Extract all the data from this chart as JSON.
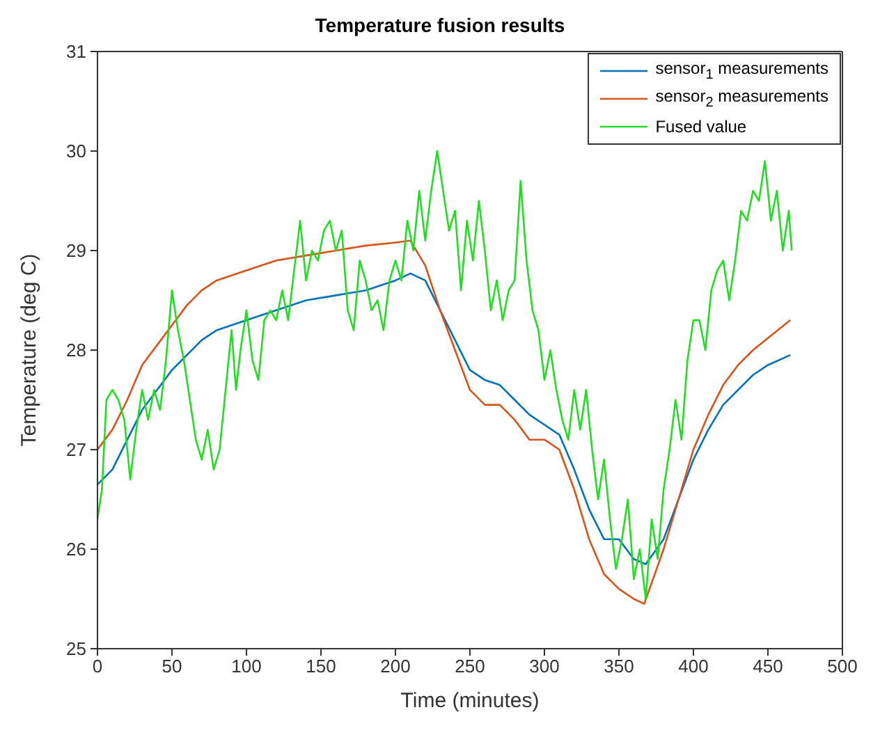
{
  "chart_data": {
    "type": "line",
    "title": "Temperature fusion results",
    "xlabel": "Time (minutes)",
    "ylabel": "Temperature (deg C)",
    "xlim": [
      0,
      500
    ],
    "xticks": [
      0,
      50,
      100,
      150,
      200,
      250,
      300,
      350,
      400,
      450,
      500
    ],
    "ylim": [
      25,
      31
    ],
    "yticks": [
      25,
      26,
      27,
      28,
      29,
      30,
      31
    ],
    "grid": false,
    "legend": "top right",
    "line_style": "solid",
    "marker": "none",
    "series": [
      {
        "name": "sensor$_{1}$ measurements",
        "color": "#0072bd",
        "x": [
          0,
          10,
          20,
          30,
          40,
          50,
          60,
          70,
          80,
          100,
          120,
          140,
          160,
          180,
          200,
          210,
          220,
          230,
          240,
          250,
          260,
          270,
          280,
          290,
          300,
          310,
          320,
          330,
          340,
          350,
          360,
          368,
          380,
          390,
          400,
          410,
          420,
          430,
          440,
          450,
          465
        ],
        "values": [
          26.65,
          26.8,
          27.1,
          27.4,
          27.6,
          27.8,
          27.95,
          28.1,
          28.2,
          28.3,
          28.4,
          28.5,
          28.55,
          28.6,
          28.7,
          28.77,
          28.7,
          28.4,
          28.1,
          27.8,
          27.7,
          27.65,
          27.5,
          27.35,
          27.25,
          27.15,
          26.8,
          26.4,
          26.1,
          26.1,
          25.9,
          25.85,
          26.1,
          26.5,
          26.9,
          27.2,
          27.45,
          27.6,
          27.75,
          27.85,
          27.95
        ]
      },
      {
        "name": "sensor$_{2}$ measurements",
        "color": "#d95319",
        "x": [
          0,
          10,
          20,
          30,
          40,
          50,
          60,
          70,
          80,
          100,
          120,
          140,
          160,
          180,
          200,
          210,
          220,
          230,
          240,
          250,
          260,
          270,
          280,
          290,
          300,
          310,
          320,
          330,
          340,
          350,
          360,
          367,
          380,
          390,
          400,
          410,
          420,
          430,
          440,
          450,
          465
        ],
        "values": [
          27.0,
          27.2,
          27.5,
          27.85,
          28.05,
          28.25,
          28.45,
          28.6,
          28.7,
          28.8,
          28.9,
          28.95,
          29.0,
          29.05,
          29.08,
          29.1,
          28.85,
          28.4,
          28.0,
          27.6,
          27.45,
          27.45,
          27.3,
          27.1,
          27.1,
          27.0,
          26.6,
          26.1,
          25.75,
          25.6,
          25.5,
          25.45,
          26.0,
          26.5,
          27.0,
          27.35,
          27.65,
          27.85,
          28.0,
          28.12,
          28.3
        ]
      },
      {
        "name": "Fused value",
        "color": "#22dd22",
        "x": [
          0,
          3,
          6,
          10,
          14,
          18,
          22,
          26,
          30,
          34,
          38,
          42,
          46,
          50,
          54,
          58,
          62,
          66,
          70,
          74,
          78,
          82,
          86,
          90,
          93,
          96,
          100,
          104,
          108,
          112,
          116,
          120,
          124,
          128,
          132,
          136,
          140,
          144,
          148,
          152,
          156,
          160,
          164,
          168,
          172,
          176,
          180,
          184,
          188,
          192,
          196,
          200,
          204,
          208,
          212,
          216,
          220,
          224,
          228,
          232,
          236,
          240,
          244,
          248,
          252,
          256,
          260,
          264,
          268,
          272,
          276,
          280,
          284,
          288,
          292,
          296,
          300,
          304,
          308,
          312,
          316,
          320,
          324,
          328,
          332,
          336,
          340,
          344,
          348,
          352,
          356,
          360,
          364,
          368,
          372,
          376,
          380,
          384,
          388,
          392,
          396,
          400,
          404,
          408,
          412,
          416,
          420,
          424,
          428,
          432,
          436,
          440,
          444,
          448,
          452,
          456,
          460,
          464,
          466
        ],
        "values": [
          26.3,
          26.6,
          27.5,
          27.6,
          27.5,
          27.3,
          26.7,
          27.2,
          27.6,
          27.3,
          27.6,
          27.4,
          27.9,
          28.6,
          28.2,
          27.9,
          27.5,
          27.1,
          26.9,
          27.2,
          26.8,
          27.0,
          27.6,
          28.2,
          27.6,
          28.0,
          28.4,
          27.9,
          27.7,
          28.3,
          28.4,
          28.3,
          28.6,
          28.3,
          28.8,
          29.3,
          28.7,
          29.0,
          28.9,
          29.2,
          29.3,
          29.0,
          29.2,
          28.4,
          28.2,
          28.9,
          28.7,
          28.4,
          28.5,
          28.2,
          28.7,
          28.9,
          28.7,
          29.3,
          29.0,
          29.6,
          29.1,
          29.6,
          30.0,
          29.6,
          29.2,
          29.4,
          28.6,
          29.3,
          28.9,
          29.5,
          29.0,
          28.4,
          28.7,
          28.3,
          28.6,
          28.7,
          29.7,
          28.9,
          28.4,
          28.2,
          27.7,
          28.0,
          27.6,
          27.3,
          27.1,
          27.6,
          27.2,
          27.6,
          27.0,
          26.5,
          26.9,
          26.3,
          25.8,
          26.1,
          26.5,
          25.7,
          26.0,
          25.5,
          26.3,
          25.9,
          26.6,
          27.0,
          27.5,
          27.1,
          27.9,
          28.3,
          28.3,
          28.0,
          28.6,
          28.8,
          28.9,
          28.5,
          28.9,
          29.4,
          29.3,
          29.6,
          29.5,
          29.9,
          29.3,
          29.6,
          29.0,
          29.4,
          29.0
        ]
      }
    ]
  }
}
